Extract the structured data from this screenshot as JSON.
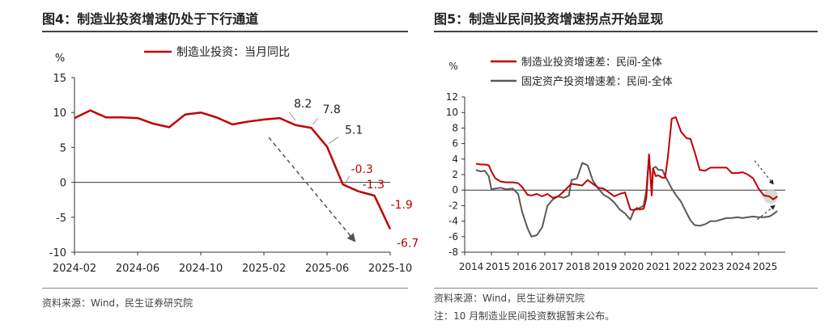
{
  "left": {
    "title": "图4：制造业投资增速仍处于下行通道",
    "source": "资料来源：Wind，民生证券研究院",
    "chart_data": {
      "type": "line",
      "ylabel": "%",
      "ylim": [
        -10,
        15
      ],
      "yticks": [
        -10,
        -5,
        0,
        5,
        10,
        15
      ],
      "x_tick_labels": [
        "2024-02",
        "2024-06",
        "2024-10",
        "2025-02",
        "2025-06",
        "2025-10"
      ],
      "x_tick_index": [
        0,
        4,
        8,
        12,
        16,
        20
      ],
      "legend": "top-center",
      "series": [
        {
          "name": "制造业投资：当月同比",
          "color": "#c00000",
          "x": [
            "2024-02",
            "2024-03",
            "2024-04",
            "2024-05",
            "2024-06",
            "2024-07",
            "2024-08",
            "2024-09",
            "2024-10",
            "2024-11",
            "2024-12",
            "2025-01",
            "2025-02",
            "2025-03",
            "2025-04",
            "2025-05",
            "2025-06",
            "2025-07",
            "2025-08",
            "2025-09",
            "2025-10"
          ],
          "values": [
            9.2,
            10.3,
            9.3,
            9.3,
            9.2,
            8.4,
            7.9,
            9.7,
            10.0,
            9.3,
            8.3,
            8.7,
            9.0,
            9.2,
            8.2,
            7.8,
            5.1,
            -0.3,
            -1.3,
            -1.9,
            -6.7
          ]
        }
      ],
      "data_labels": [
        {
          "text": "8.2",
          "color": "#222222"
        },
        {
          "text": "7.8",
          "color": "#222222"
        },
        {
          "text": "5.1",
          "color": "#222222"
        },
        {
          "text": "-0.3",
          "color": "#c00000"
        },
        {
          "text": "-1.3",
          "color": "#c00000"
        },
        {
          "text": "-1.9",
          "color": "#c00000"
        },
        {
          "text": "-6.7",
          "color": "#c00000"
        }
      ]
    }
  },
  "right": {
    "title": "图5：制造业民间投资增速拐点开始显现",
    "source": "资料来源：Wind，民生证券研究院",
    "note": "注：10 月制造业民间投资数据暂未公布。",
    "chart_data": {
      "type": "line",
      "ylabel": "%",
      "ylim": [
        -8,
        12
      ],
      "yticks": [
        -8,
        -6,
        -4,
        -2,
        0,
        2,
        4,
        6,
        8,
        10,
        12
      ],
      "xlim": [
        2014,
        2026
      ],
      "x_tick_labels": [
        "2014",
        "2015",
        "2016",
        "2017",
        "2018",
        "2019",
        "2020",
        "2021",
        "2022",
        "2023",
        "2024",
        "2025"
      ],
      "legend": "top-left",
      "series": [
        {
          "name": "制造业投资增速差：民间-全体",
          "color": "#c00000",
          "x": [
            2014.42,
            2014.6,
            2014.75,
            2014.9,
            2015.0,
            2015.15,
            2015.35,
            2015.55,
            2015.8,
            2016.0,
            2016.15,
            2016.35,
            2016.5,
            2016.7,
            2016.9,
            2017.1,
            2017.3,
            2017.5,
            2017.7,
            2017.9,
            2018.0,
            2018.2,
            2018.4,
            2018.6,
            2018.8,
            2019.0,
            2019.2,
            2019.4,
            2019.6,
            2019.8,
            2020.0,
            2020.2,
            2020.35,
            2020.45,
            2020.55,
            2020.7,
            2020.8,
            2020.9,
            2021.0,
            2021.05,
            2021.15,
            2021.25,
            2021.4,
            2021.5,
            2021.6,
            2021.75,
            2021.9,
            2022.1,
            2022.3,
            2022.45,
            2022.6,
            2022.8,
            2023.0,
            2023.2,
            2023.4,
            2023.6,
            2023.8,
            2024.0,
            2024.2,
            2024.4,
            2024.6,
            2024.8,
            2025.0,
            2025.2,
            2025.4,
            2025.55,
            2025.7
          ],
          "values": [
            3.4,
            3.3,
            3.3,
            3.2,
            2.4,
            1.5,
            1.1,
            1.0,
            1.0,
            0.9,
            0.4,
            -0.6,
            -0.7,
            -0.5,
            -0.8,
            -0.5,
            -1.0,
            -0.8,
            -0.2,
            0.5,
            0.8,
            0.7,
            0.6,
            1.3,
            0.8,
            0.3,
            0.2,
            -0.3,
            -0.8,
            -0.5,
            -0.3,
            -2.5,
            -2.6,
            -2.3,
            -2.5,
            -2.4,
            -1.0,
            4.6,
            -0.7,
            2.8,
            1.8,
            1.9,
            1.6,
            1.6,
            4.1,
            9.2,
            9.4,
            7.5,
            6.7,
            6.6,
            5.0,
            2.6,
            2.5,
            2.9,
            2.9,
            2.9,
            2.9,
            2.2,
            2.2,
            2.3,
            2.0,
            1.5,
            0.2,
            -0.7,
            -0.8,
            -1.2,
            -0.8
          ]
        },
        {
          "name": "固定资产投资增速差：民间-全体",
          "color": "#595959",
          "x": [
            2014.42,
            2014.6,
            2014.75,
            2014.9,
            2015.0,
            2015.15,
            2015.35,
            2015.55,
            2015.8,
            2016.0,
            2016.15,
            2016.35,
            2016.5,
            2016.7,
            2016.9,
            2017.1,
            2017.3,
            2017.5,
            2017.7,
            2017.9,
            2018.0,
            2018.2,
            2018.4,
            2018.6,
            2018.8,
            2019.0,
            2019.2,
            2019.4,
            2019.6,
            2019.8,
            2020.0,
            2020.2,
            2020.35,
            2020.45,
            2020.55,
            2020.7,
            2020.8,
            2020.9,
            2021.0,
            2021.05,
            2021.15,
            2021.25,
            2021.4,
            2021.5,
            2021.6,
            2021.75,
            2021.9,
            2022.1,
            2022.3,
            2022.45,
            2022.6,
            2022.8,
            2023.0,
            2023.2,
            2023.4,
            2023.6,
            2023.8,
            2024.0,
            2024.2,
            2024.4,
            2024.6,
            2024.8,
            2025.0,
            2025.2,
            2025.4,
            2025.55,
            2025.7
          ],
          "values": [
            2.6,
            2.4,
            2.5,
            1.8,
            0.1,
            0.2,
            0.3,
            0.1,
            0.2,
            -0.5,
            -2.8,
            -4.9,
            -6.0,
            -5.8,
            -4.8,
            -2.0,
            -1.2,
            -0.8,
            -1.0,
            -0.7,
            1.3,
            1.5,
            3.5,
            3.2,
            1.2,
            0.2,
            -0.6,
            -1.0,
            -1.6,
            -2.5,
            -3.0,
            -3.8,
            -2.5,
            -2.5,
            -2.3,
            -2.0,
            0.0,
            4.4,
            -0.5,
            2.8,
            3.0,
            2.6,
            2.6,
            1.8,
            1.2,
            0.2,
            -0.6,
            -1.5,
            -2.9,
            -3.9,
            -4.5,
            -4.6,
            -4.4,
            -4.0,
            -4.0,
            -3.8,
            -3.6,
            -3.6,
            -3.5,
            -3.6,
            -3.5,
            -3.4,
            -3.5,
            -3.5,
            -3.4,
            -3.1,
            -2.7
          ]
        }
      ]
    }
  }
}
